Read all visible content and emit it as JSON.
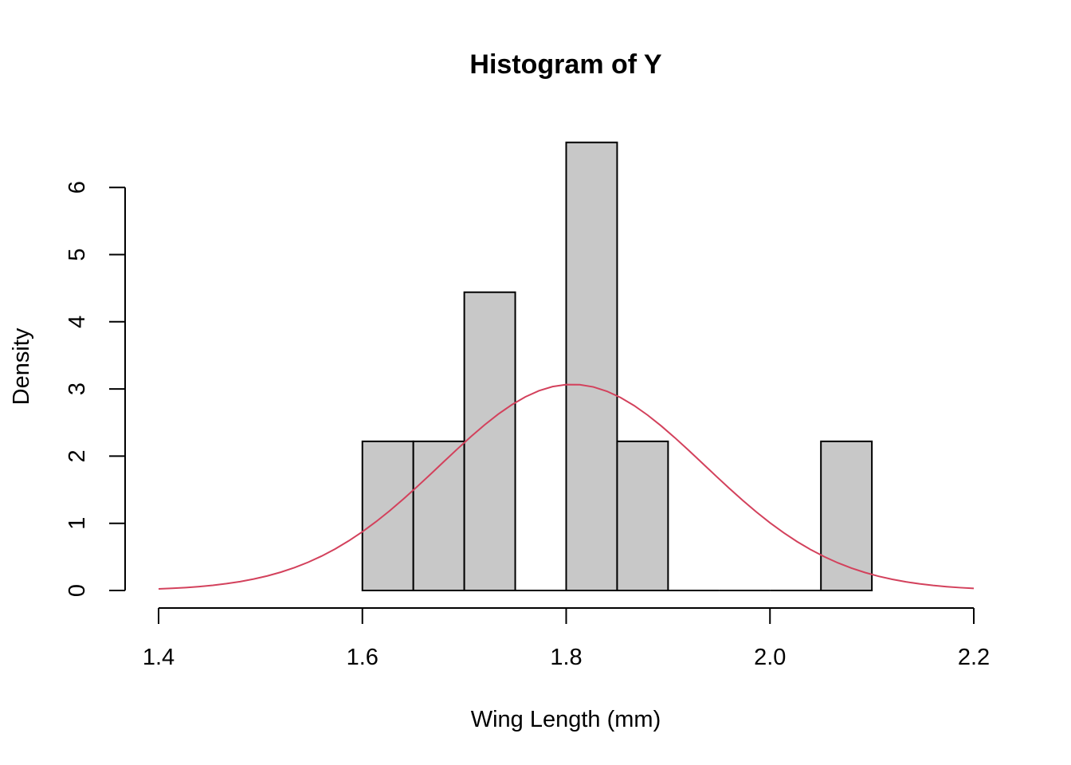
{
  "chart_data": {
    "type": "bar",
    "subtype": "histogram",
    "title": "Histogram of Y",
    "xlabel": "Wing Length (mm)",
    "ylabel": "Density",
    "xlim": [
      1.4,
      2.2
    ],
    "ylim": [
      0,
      6.67
    ],
    "x_ticks": [
      1.4,
      1.6,
      1.8,
      2.0,
      2.2
    ],
    "x_tick_labels": [
      "1.4",
      "1.6",
      "1.8",
      "2.0",
      "2.2"
    ],
    "y_ticks": [
      0,
      1,
      2,
      3,
      4,
      5,
      6
    ],
    "y_tick_labels": [
      "0",
      "1",
      "2",
      "3",
      "4",
      "5",
      "6"
    ],
    "bins": [
      {
        "start": 1.6,
        "end": 1.65,
        "density": 2.22
      },
      {
        "start": 1.65,
        "end": 1.7,
        "density": 2.22
      },
      {
        "start": 1.7,
        "end": 1.75,
        "density": 4.44
      },
      {
        "start": 1.75,
        "end": 1.8,
        "density": 0
      },
      {
        "start": 1.8,
        "end": 1.85,
        "density": 6.67
      },
      {
        "start": 1.85,
        "end": 1.9,
        "density": 2.22
      },
      {
        "start": 1.9,
        "end": 1.95,
        "density": 0
      },
      {
        "start": 1.95,
        "end": 2.0,
        "density": 0
      },
      {
        "start": 2.0,
        "end": 2.05,
        "density": 0
      },
      {
        "start": 2.05,
        "end": 2.1,
        "density": 2.22
      }
    ],
    "overlay_curve": {
      "type": "normal-density",
      "mean": 1.806,
      "sd": 0.13,
      "x_range": [
        1.4,
        2.2
      ]
    },
    "grid": false,
    "legend": "none",
    "colors": {
      "bar_fill": "#c8c8c8",
      "bar_stroke": "#000000",
      "curve": "#d3415c"
    }
  }
}
